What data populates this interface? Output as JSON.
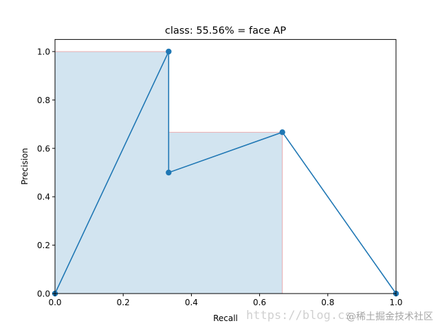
{
  "chart_data": {
    "type": "line",
    "title": "class: 55.56% = face AP",
    "xlabel": "Recall",
    "ylabel": "Precision",
    "xlim": [
      0,
      1.0
    ],
    "ylim": [
      0,
      1.05
    ],
    "xticks": [
      "0.0",
      "0.2",
      "0.4",
      "0.6",
      "0.8",
      "1.0"
    ],
    "yticks": [
      "0.0",
      "0.2",
      "0.4",
      "0.6",
      "0.8",
      "1.0"
    ],
    "grid": false,
    "series": [
      {
        "x": [
          0.0,
          0.3333,
          0.3333,
          0.6667,
          1.0
        ],
        "y": [
          0.0,
          1.0,
          0.5,
          0.6667,
          0.0
        ],
        "color": "#1f77b4",
        "marker": "o"
      }
    ],
    "area": {
      "x": [
        0.0,
        0.3333,
        0.3333,
        0.6667,
        0.6667
      ],
      "y": [
        1.0,
        1.0,
        0.6667,
        0.6667,
        0.0
      ],
      "fill_color": "#1f77b4",
      "edge_color": "#f08080"
    }
  },
  "watermark": {
    "url": "https://blog.cs",
    "brand": "@稀土掘金技术社区"
  }
}
